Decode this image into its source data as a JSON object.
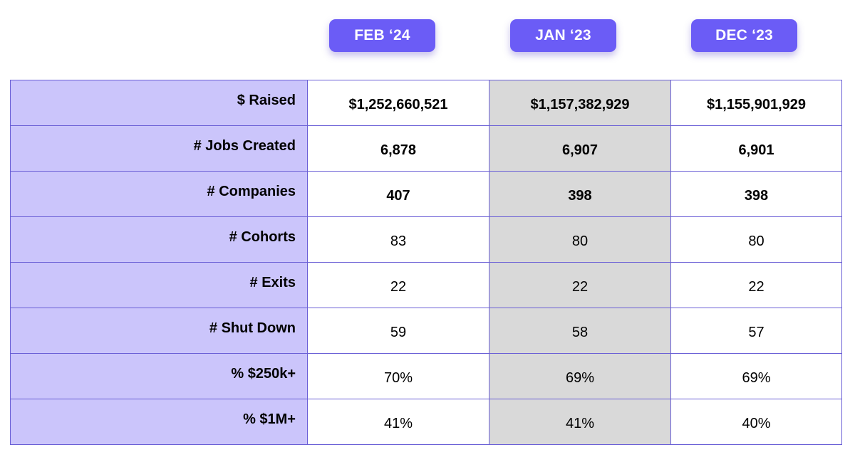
{
  "columns": [
    "FEB ‘24",
    "JAN ‘23",
    "DEC ‘23"
  ],
  "colors": {
    "header_pill": "#6b5cf6",
    "label_column_bg": "#cbc5fb",
    "highlight_column_bg": "#d9d9d9",
    "border": "#6a5fd6"
  },
  "rows": [
    {
      "label": "$ Raised",
      "bold": true,
      "values": [
        "$1,252,660,521",
        "$1,157,382,929",
        "$1,155,901,929"
      ]
    },
    {
      "label": "# Jobs Created",
      "bold": true,
      "values": [
        "6,878",
        "6,907",
        "6,901"
      ]
    },
    {
      "label": "# Companies",
      "bold": true,
      "values": [
        "407",
        "398",
        "398"
      ]
    },
    {
      "label": "# Cohorts",
      "bold": false,
      "values": [
        "83",
        "80",
        "80"
      ]
    },
    {
      "label": "# Exits",
      "bold": false,
      "values": [
        "22",
        "22",
        "22"
      ]
    },
    {
      "label": "# Shut Down",
      "bold": false,
      "values": [
        "59",
        "58",
        "57"
      ]
    },
    {
      "label": "% $250k+",
      "bold": false,
      "values": [
        "70%",
        "69%",
        "69%"
      ]
    },
    {
      "label": "% $1M+",
      "bold": false,
      "values": [
        "41%",
        "41%",
        "40%"
      ]
    }
  ]
}
